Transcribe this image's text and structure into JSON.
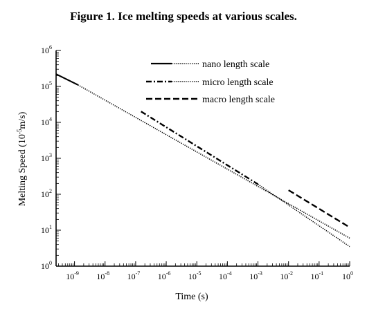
{
  "chart_data": {
    "type": "line",
    "title": "Figure 1. Ice melting speeds at various scales.",
    "xlabel": "Time (s)",
    "ylabel_main": "Melting Speed (10",
    "ylabel_sup": "-5",
    "ylabel_tail": "m/s)",
    "x_scale": "log",
    "y_scale": "log",
    "xlim": [
      2.5e-10,
      1
    ],
    "ylim": [
      1,
      1000000
    ],
    "x_ticks": [
      {
        "value": 1e-09,
        "base": "10",
        "exp": "-9"
      },
      {
        "value": 1e-08,
        "base": "10",
        "exp": "-8"
      },
      {
        "value": 1e-07,
        "base": "10",
        "exp": "-7"
      },
      {
        "value": 1e-06,
        "base": "10",
        "exp": "-6"
      },
      {
        "value": 1e-05,
        "base": "10",
        "exp": "-5"
      },
      {
        "value": 0.0001,
        "base": "10",
        "exp": "-4"
      },
      {
        "value": 0.001,
        "base": "10",
        "exp": "-3"
      },
      {
        "value": 0.01,
        "base": "10",
        "exp": "-2"
      },
      {
        "value": 0.1,
        "base": "10",
        "exp": "-1"
      },
      {
        "value": 1,
        "base": "10",
        "exp": "0"
      }
    ],
    "y_ticks": [
      {
        "value": 1,
        "base": "10",
        "exp": "0"
      },
      {
        "value": 10,
        "base": "10",
        "exp": "1"
      },
      {
        "value": 100,
        "base": "10",
        "exp": "2"
      },
      {
        "value": 1000,
        "base": "10",
        "exp": "3"
      },
      {
        "value": 10000,
        "base": "10",
        "exp": "4"
      },
      {
        "value": 100000,
        "base": "10",
        "exp": "5"
      },
      {
        "value": 1000000,
        "base": "10",
        "exp": "6"
      }
    ],
    "grid": false,
    "legend_position": "top-right",
    "series": [
      {
        "name": "nano length scale",
        "style": "nano",
        "segments": [
          {
            "dash": "solid",
            "points": [
              [
                2.5e-10,
                220000
              ],
              [
                1.3e-09,
                110000
              ]
            ]
          },
          {
            "dash": "dotted",
            "points": [
              [
                1.3e-09,
                110000
              ],
              [
                1,
                6
              ]
            ]
          }
        ]
      },
      {
        "name": "micro length scale",
        "style": "micro",
        "segments": [
          {
            "dash": "dashdot",
            "points": [
              [
                1.5e-07,
                20000
              ],
              [
                0.001,
                190
              ]
            ]
          },
          {
            "dash": "dotted",
            "points": [
              [
                0.001,
                190
              ],
              [
                1,
                3.5
              ]
            ]
          }
        ]
      },
      {
        "name": "macro length scale",
        "style": "macro",
        "segments": [
          {
            "dash": "dashed",
            "points": [
              [
                0.01,
                130
              ],
              [
                1,
                12
              ]
            ]
          }
        ]
      }
    ],
    "colors": {
      "line": "#000000"
    }
  }
}
